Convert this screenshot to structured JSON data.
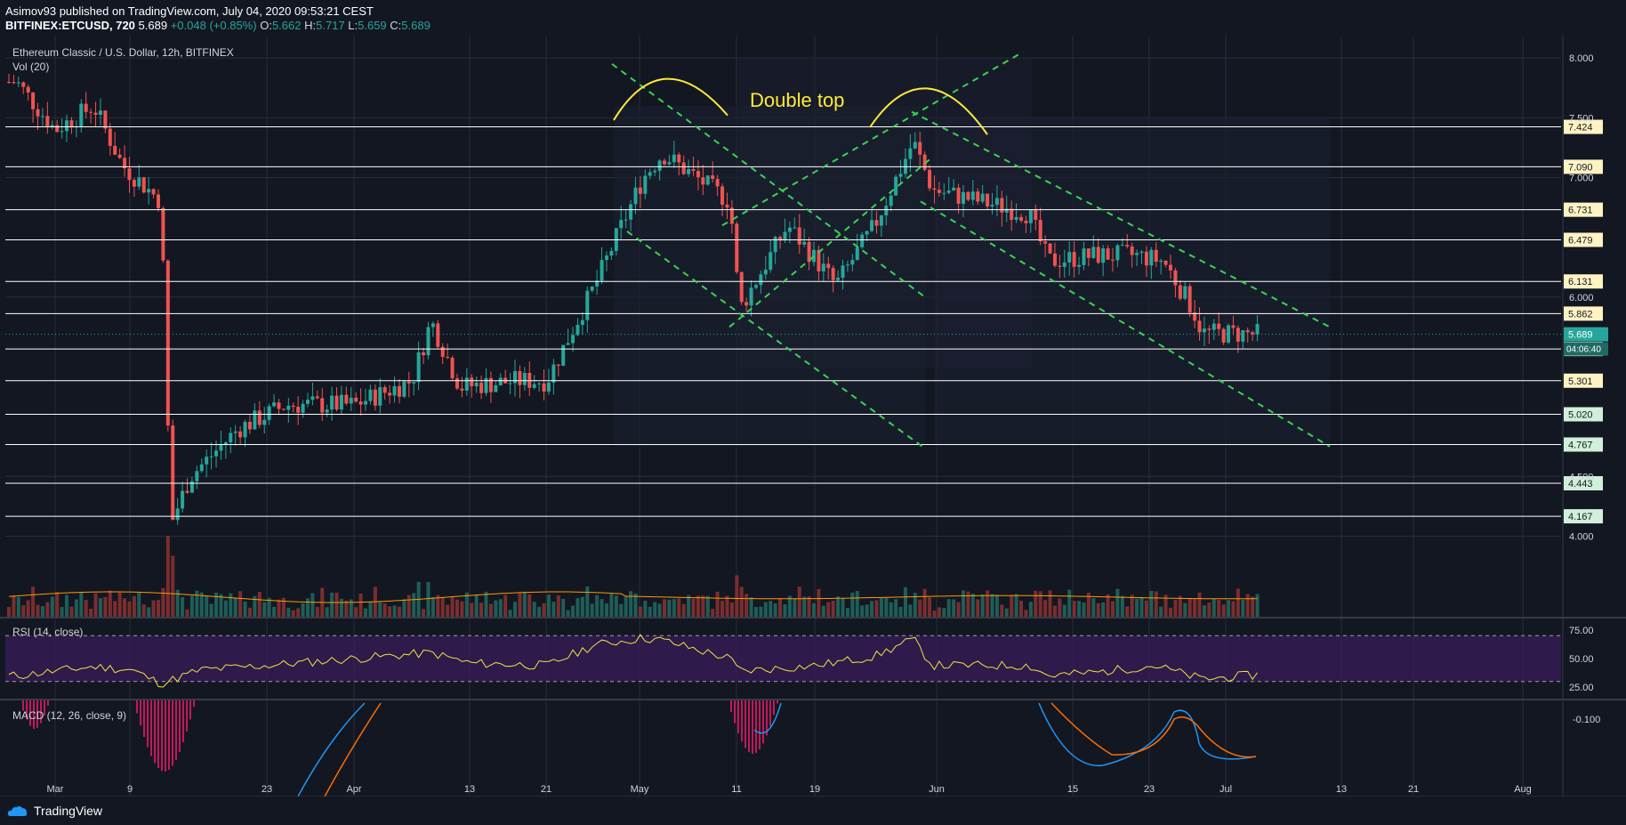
{
  "header": {
    "publisher": "Asimov93 published on TradingView.com, July 04, 2020 09:53:21 CEST",
    "symbol": "BITFINEX:ETCUSD, 720",
    "last": "5.689",
    "change": "+0.048 (+0.85%)",
    "o_label": "O:",
    "o": "5.662",
    "h_label": "H:",
    "h": "5.717",
    "l_label": "L:",
    "l": "5.659",
    "c_label": "C:",
    "c": "5.689"
  },
  "footer": {
    "brand": "TradingView"
  },
  "colors": {
    "bg": "#131722",
    "grid": "#2a2e39",
    "up": "#26a69a",
    "down": "#ef5350",
    "level": "#ffffff",
    "channel": "#39d353",
    "arc": "#ffeb3b",
    "rsi": "#f0e442",
    "rsi_band": "#3b1d5c",
    "macd": "#2196f3",
    "signal": "#ff6d00",
    "vol_ma": "#ff9800"
  },
  "chart_data": [
    {
      "type": "candlestick",
      "title": "Ethereum Classic / U.S. Dollar, 12h, BITFINEX",
      "indicator_label": "Vol (20)",
      "annotation": "Double top",
      "x_ticks": [
        "Mar",
        "9",
        "23",
        "Apr",
        "13",
        "21",
        "May",
        "11",
        "19",
        "Jun",
        "15",
        "23",
        "Jul",
        "13",
        "21",
        "Aug"
      ],
      "y_ticks": [
        "8.000",
        "7.500",
        "7.000",
        "6.000",
        "4.500",
        "4.000"
      ],
      "ylim": [
        3.55,
        8.15
      ],
      "horizontal_levels": [
        "7.424",
        "7.090",
        "6.731",
        "6.479",
        "6.131",
        "5.862",
        "5.566",
        "5.301",
        "5.020",
        "4.767",
        "4.443",
        "4.167"
      ],
      "current_price": "5.689",
      "countdown": "04:06:40",
      "close_path_dates": [
        "Feb 26",
        "Mar 1",
        "Mar 5",
        "Mar 8",
        "Mar 12",
        "Mar 13",
        "Mar 15",
        "Mar 20",
        "Mar 25",
        "Apr 1",
        "Apr 7",
        "Apr 9",
        "Apr 12",
        "Apr 18",
        "Apr 21",
        "Apr 26",
        "May 1",
        "May 3",
        "May 10",
        "May 11",
        "May 16",
        "May 21",
        "May 25",
        "May 29",
        "May 31",
        "Jun 5",
        "Jun 10",
        "Jun 12",
        "Jun 17",
        "Jun 21",
        "Jun 24",
        "Jun 27",
        "Jun 28",
        "Jul 4"
      ],
      "close_path_values": [
        7.8,
        7.4,
        7.6,
        7.1,
        6.8,
        4.1,
        4.5,
        4.9,
        5.1,
        5.1,
        5.3,
        5.8,
        5.25,
        5.3,
        5.3,
        6.1,
        7.0,
        7.2,
        6.8,
        5.9,
        6.6,
        6.1,
        6.6,
        7.3,
        6.9,
        6.8,
        6.7,
        6.3,
        6.35,
        6.35,
        6.3,
        5.9,
        5.7,
        5.69
      ]
    },
    {
      "type": "line",
      "title": "RSI (14, close)",
      "y_ticks": [
        "75.00",
        "50.00",
        "25.00"
      ],
      "ylim": [
        15,
        85
      ],
      "bands": [
        70,
        30
      ],
      "dates": [
        "Feb 26",
        "Mar 5",
        "Mar 9",
        "Mar 12",
        "Mar 16",
        "Mar 23",
        "Apr 1",
        "Apr 9",
        "Apr 13",
        "Apr 21",
        "Apr 26",
        "May 1",
        "May 3",
        "May 10",
        "May 11",
        "May 19",
        "May 25",
        "May 29",
        "May 31",
        "Jun 10",
        "Jun 12",
        "Jun 17",
        "Jun 23",
        "Jun 28",
        "Jul 4"
      ],
      "values": [
        35,
        43,
        40,
        28,
        40,
        44,
        50,
        55,
        46,
        44,
        62,
        68,
        66,
        50,
        39,
        44,
        52,
        67,
        44,
        44,
        35,
        38,
        44,
        32,
        36
      ]
    },
    {
      "type": "line",
      "title": "MACD (12, 26, close, 9)",
      "y_ticks": [
        "-0.100"
      ]
    }
  ]
}
